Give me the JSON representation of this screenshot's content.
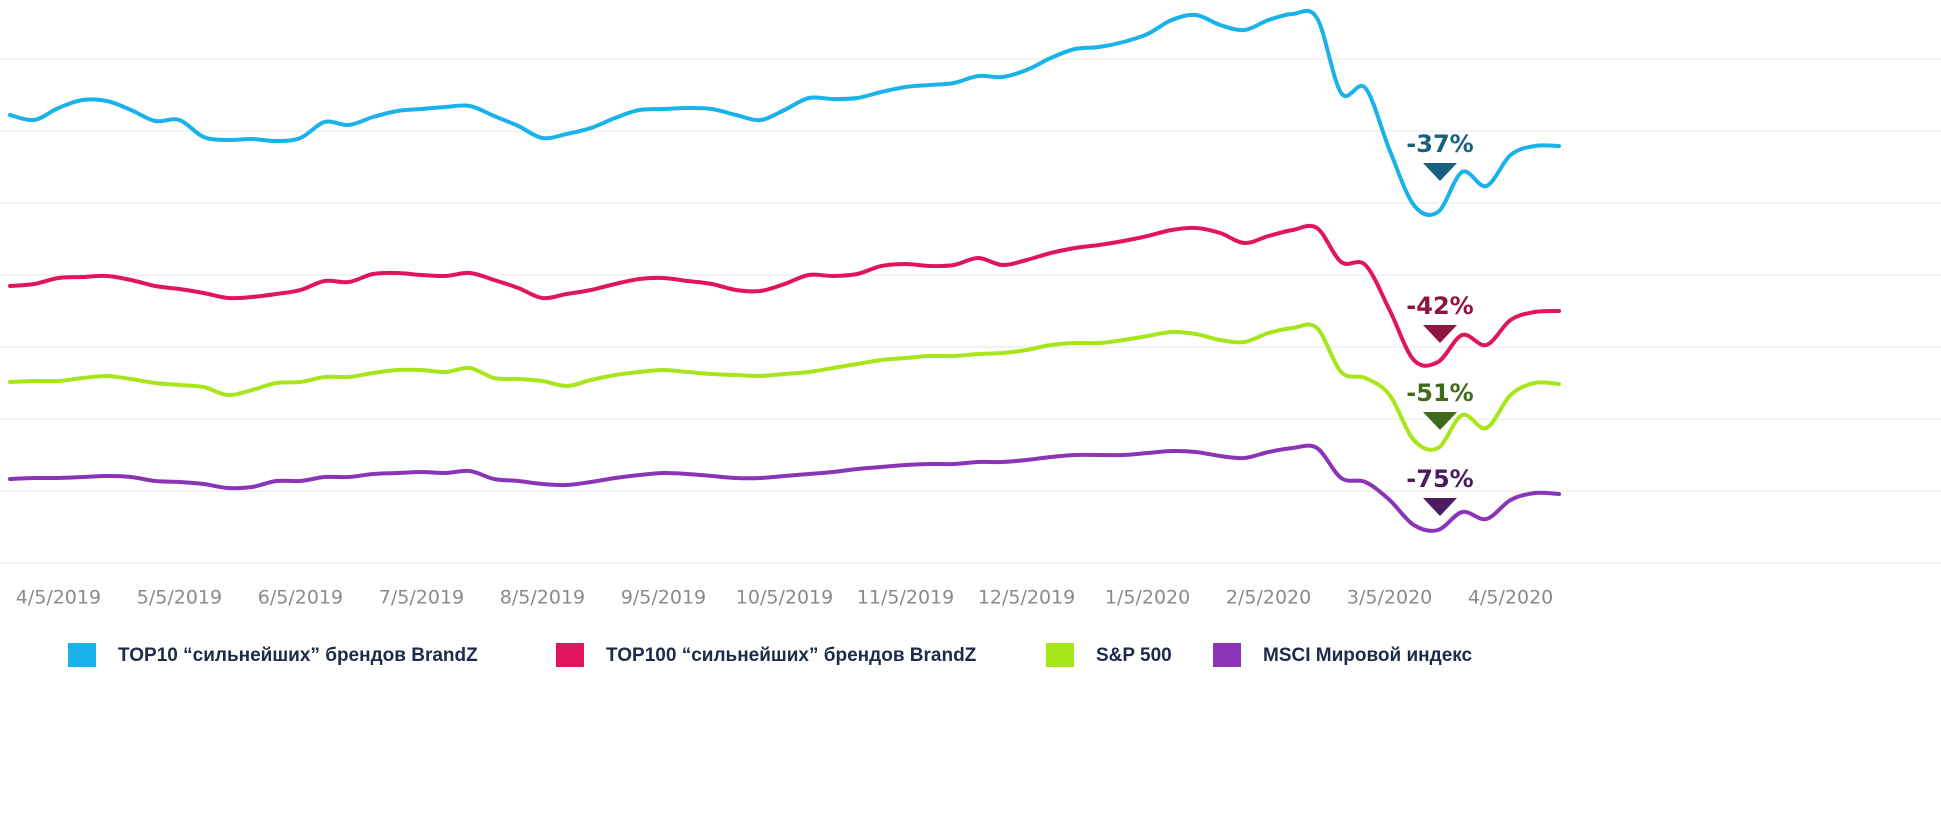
{
  "chart_data": {
    "type": "line",
    "categories": [
      null,
      null,
      "4/5/2019",
      null,
      null,
      null,
      null,
      "5/5/2019",
      null,
      null,
      null,
      null,
      "6/5/2019",
      null,
      null,
      null,
      null,
      "7/5/2019",
      null,
      null,
      null,
      null,
      "8/5/2019",
      null,
      null,
      null,
      null,
      "9/5/2019",
      null,
      null,
      null,
      null,
      "10/5/2019",
      null,
      null,
      null,
      null,
      "11/5/2019",
      null,
      null,
      null,
      null,
      "12/5/2019",
      null,
      null,
      null,
      null,
      "1/5/2020",
      null,
      null,
      null,
      null,
      "2/5/2020",
      null,
      null,
      null,
      null,
      "3/5/2020",
      null,
      null,
      null,
      null,
      "4/5/2020",
      null,
      null
    ],
    "ylim": [
      0,
      563
    ],
    "gridlines": [
      0,
      72,
      144,
      216,
      288,
      360,
      432,
      504
    ],
    "grid": true,
    "legend": "bottom",
    "series": [
      {
        "name": "TOP10 “сильнейших” брендов BrandZ",
        "color": "#1ab2ea",
        "annotation": "-37%",
        "annotation_color": "#17607f",
        "values": [
          448,
          443,
          455,
          463,
          462,
          453,
          442,
          443,
          426,
          423,
          424,
          422,
          425,
          441,
          438,
          446,
          452,
          454,
          456,
          457,
          447,
          437,
          425,
          429,
          435,
          445,
          453,
          454,
          455,
          454,
          448,
          443,
          453,
          465,
          464,
          465,
          471,
          476,
          478,
          480,
          487,
          486,
          493,
          505,
          514,
          516,
          521,
          529,
          543,
          548,
          538,
          533,
          543,
          549,
          545,
          470,
          475,
          413,
          358,
          351,
          391,
          377,
          408,
          417,
          417
        ]
      },
      {
        "name": "TOP100 “сильнейших” брендов BrandZ",
        "color": "#e0145f",
        "annotation": "-42%",
        "annotation_color": "#8e1540",
        "values": [
          277,
          279,
          285,
          286,
          287,
          283,
          277,
          274,
          270,
          265,
          266,
          269,
          273,
          282,
          281,
          289,
          290,
          288,
          287,
          290,
          283,
          275,
          265,
          269,
          273,
          279,
          284,
          285,
          282,
          279,
          273,
          272,
          279,
          288,
          287,
          289,
          297,
          299,
          297,
          298,
          305,
          298,
          303,
          310,
          315,
          318,
          322,
          327,
          333,
          335,
          330,
          320,
          327,
          333,
          335,
          301,
          298,
          253,
          203,
          201,
          228,
          218,
          243,
          251,
          252
        ]
      },
      {
        "name": "S&P 500",
        "color": "#a6e61a",
        "annotation": "-51%",
        "annotation_color": "#3f6b1c",
        "values": [
          181,
          182,
          182,
          185,
          187,
          184,
          180,
          178,
          176,
          168,
          173,
          180,
          181,
          186,
          186,
          190,
          193,
          193,
          191,
          195,
          185,
          184,
          182,
          177,
          183,
          188,
          191,
          193,
          191,
          189,
          188,
          187,
          189,
          191,
          195,
          199,
          203,
          205,
          207,
          207,
          209,
          210,
          213,
          218,
          220,
          220,
          223,
          227,
          231,
          229,
          223,
          221,
          230,
          235,
          235,
          191,
          185,
          168,
          123,
          115,
          148,
          135,
          168,
          180,
          179
        ]
      },
      {
        "name": "MSCI Мировой индекс",
        "color": "#8a35b8",
        "annotation": "-75%",
        "annotation_color": "#4a1c5e",
        "values": [
          84,
          85,
          85,
          86,
          87,
          86,
          82,
          81,
          79,
          75,
          76,
          82,
          82,
          86,
          86,
          89,
          90,
          91,
          90,
          92,
          84,
          82,
          79,
          78,
          81,
          85,
          88,
          90,
          89,
          87,
          85,
          85,
          87,
          89,
          91,
          94,
          96,
          98,
          99,
          99,
          101,
          101,
          103,
          106,
          108,
          108,
          108,
          110,
          112,
          111,
          107,
          105,
          111,
          115,
          115,
          85,
          81,
          63,
          38,
          33,
          51,
          44,
          63,
          70,
          69
        ]
      }
    ]
  }
}
